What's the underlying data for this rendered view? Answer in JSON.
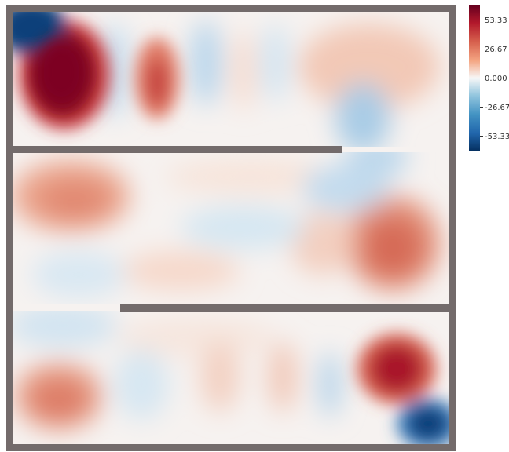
{
  "colorbar": {
    "colormap": "red-white-blue (diverging)",
    "colors": {
      "max": "#67001f",
      "high": "#d6604d",
      "mid": "#f7f7f7",
      "low": "#4393c3",
      "min": "#053061"
    },
    "range": [
      -66.67,
      66.67
    ],
    "ticks": [
      {
        "value": 53.33,
        "label": "53.33"
      },
      {
        "value": 26.67,
        "label": "26.67"
      },
      {
        "value": 0,
        "label": "0.000"
      },
      {
        "value": -26.67,
        "label": "-26.67"
      },
      {
        "value": -53.33,
        "label": "-53.33"
      }
    ]
  },
  "domain": {
    "wall_color": "#736b6b",
    "background_color": "#f7f3f1"
  }
}
